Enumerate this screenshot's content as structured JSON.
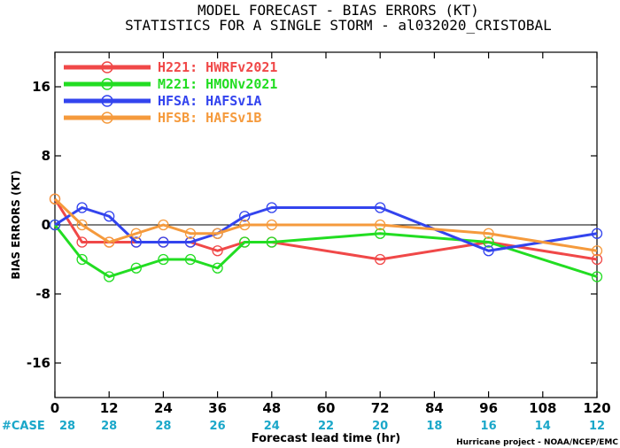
{
  "chart_data": {
    "type": "line",
    "title": "MODEL FORECAST - BIAS ERRORS (KT)",
    "subtitle": "STATISTICS FOR A SINGLE STORM - al032020_CRISTOBAL",
    "xlabel": "Forecast lead time (hr)",
    "ylabel": "BIAS ERRORS (KT)",
    "xlim": [
      0,
      120
    ],
    "ylim": [
      -20,
      20
    ],
    "xticks": [
      0,
      12,
      24,
      36,
      48,
      60,
      72,
      84,
      96,
      108,
      120
    ],
    "yticks": [
      -16,
      -8,
      0,
      8,
      16
    ],
    "zero_line": true,
    "grid": false,
    "legend_position": "top-left",
    "case_label": "#CASE",
    "case_x": [
      0,
      12,
      24,
      36,
      48,
      60,
      72,
      84,
      96,
      108,
      120
    ],
    "case_counts": [
      "28",
      "28",
      "28",
      "26",
      "24",
      "22",
      "20",
      "18",
      "16",
      "14",
      "12"
    ],
    "credit": "Hurricane project - NOAA/NCEP/EMC",
    "series": [
      {
        "name": "H221: HWRFv2021",
        "color": "#f04848",
        "x": [
          0,
          6,
          12,
          18,
          24,
          30,
          36,
          42,
          48,
          72,
          96,
          120
        ],
        "y": [
          3,
          -2,
          -2,
          -2,
          -2,
          -2,
          -3,
          -2,
          -2,
          -4,
          -2,
          -4
        ]
      },
      {
        "name": "M221: HMONv2021",
        "color": "#22dd22",
        "x": [
          0,
          6,
          12,
          18,
          24,
          30,
          36,
          42,
          48,
          72,
          96,
          120
        ],
        "y": [
          0,
          -4,
          -6,
          -5,
          -4,
          -4,
          -5,
          -2,
          -2,
          -1,
          -2,
          -6
        ]
      },
      {
        "name": "HFSA: HAFSv1A",
        "color": "#3344ee",
        "x": [
          0,
          6,
          12,
          18,
          24,
          30,
          36,
          42,
          48,
          72,
          96,
          120
        ],
        "y": [
          0,
          2,
          1,
          -2,
          -2,
          -2,
          -1,
          1,
          2,
          2,
          -3,
          -1
        ]
      },
      {
        "name": "HFSB: HAFSv1B",
        "color": "#f59a3c",
        "x": [
          0,
          6,
          12,
          18,
          24,
          30,
          36,
          42,
          48,
          72,
          96,
          120
        ],
        "y": [
          3,
          0,
          -2,
          -1,
          0,
          -1,
          -1,
          0,
          0,
          0,
          -1,
          -3
        ]
      }
    ]
  }
}
